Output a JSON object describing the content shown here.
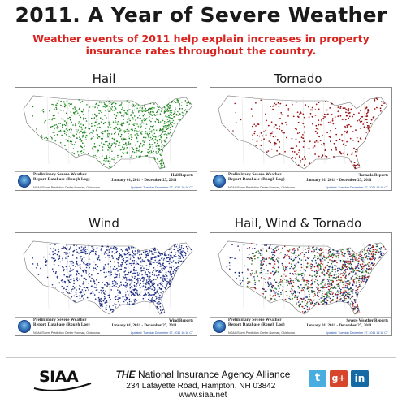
{
  "header": {
    "title": "2011. A Year of Severe Weather",
    "subtitle": "Weather events of 2011 help explain increases in property insurance rates throughout the country."
  },
  "legend_text": {
    "line1": "Preliminary Severe Weather",
    "line2": "Report Database (Rough Log)",
    "dates": "January 01, 2011 - December 27, 2011",
    "center": "NOAA/Storm Prediction Center   Norman, Oklahoma",
    "updated": "Updated:  Tuesday December 27, 2011  16:16 CT"
  },
  "panels": [
    {
      "label": "Hail",
      "report": "Hail Reports",
      "colors": [
        "#1f7a1f",
        "#2e9e2e"
      ]
    },
    {
      "label": "Tornado",
      "report": "Tornado Reports",
      "colors": [
        "#8b1010",
        "#a51a1a"
      ]
    },
    {
      "label": "Wind",
      "report": "Wind Reports",
      "colors": [
        "#1c2a7a",
        "#2b3a93"
      ]
    },
    {
      "label": "Hail, Wind & Tornado",
      "report": "Severe Weather Reports",
      "colors": [
        "#1c2a7a",
        "#2a7a2a",
        "#b01c1c"
      ]
    }
  ],
  "footer": {
    "logo": "SIAA",
    "org_prefix": "THE",
    "org_name": "National Insurance Agency Alliance",
    "address": "234 Lafayette Road, Hampton, NH 03842 | www.siaa.net",
    "social": {
      "twitter": "t",
      "googleplus": "g+",
      "linkedin": "in"
    }
  }
}
